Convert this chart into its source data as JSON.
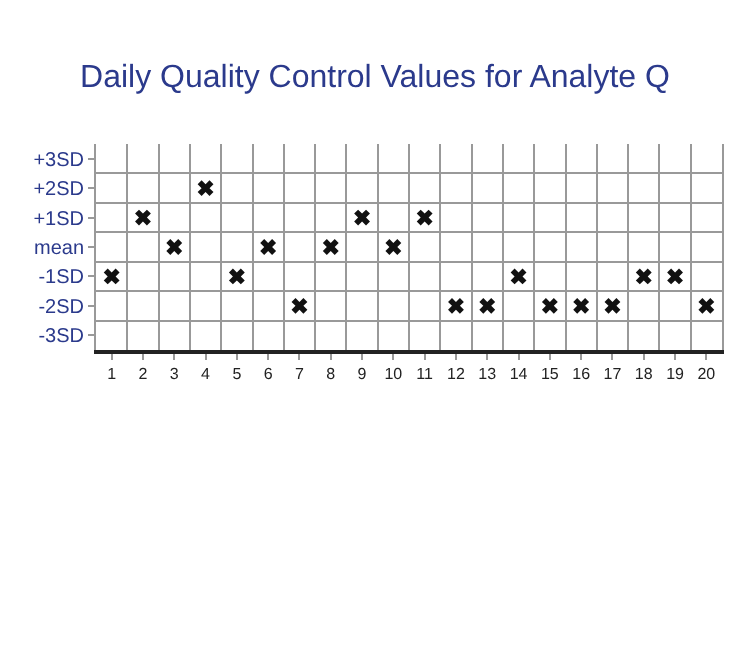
{
  "chart_data": {
    "type": "scatter",
    "title": "Daily Quality Control Values for Analyte Q",
    "x": [
      1,
      2,
      3,
      4,
      5,
      6,
      7,
      8,
      9,
      10,
      11,
      12,
      13,
      14,
      15,
      16,
      17,
      18,
      19,
      20
    ],
    "values": [
      -1,
      1,
      0,
      2,
      -1,
      0,
      -2,
      0,
      1,
      0,
      1,
      -2,
      -2,
      -1,
      -2,
      -2,
      -2,
      -1,
      -1,
      -2
    ],
    "color": "#111111",
    "marker": "cross",
    "grid": true,
    "xlim": [
      0.5,
      20.5
    ],
    "xticks": [
      1,
      2,
      3,
      4,
      5,
      6,
      7,
      8,
      9,
      10,
      11,
      12,
      13,
      14,
      15,
      16,
      17,
      18,
      19,
      20
    ],
    "ylim": [
      -3.5,
      3.5
    ],
    "yticks": [
      {
        "value": 3,
        "label": "+3SD"
      },
      {
        "value": 2,
        "label": "+2SD"
      },
      {
        "value": 1,
        "label": "+1SD"
      },
      {
        "value": 0,
        "label": "mean"
      },
      {
        "value": -1,
        "label": "-1SD"
      },
      {
        "value": -2,
        "label": "-2SD"
      },
      {
        "value": -3,
        "label": "-3SD"
      }
    ]
  }
}
